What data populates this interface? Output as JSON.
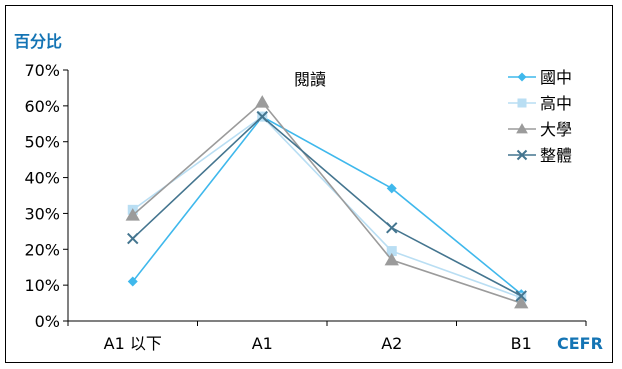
{
  "chart_data": {
    "type": "line",
    "title": "閱讀",
    "ylabel": "百分比",
    "xlabel": "CEFR",
    "categories": [
      "A1 以下",
      "A1",
      "A2",
      "B1"
    ],
    "ylim": [
      0,
      70
    ],
    "yticks": [
      "0%",
      "10%",
      "20%",
      "30%",
      "40%",
      "50%",
      "60%",
      "70%"
    ],
    "legend_position": "top-right",
    "grid": false,
    "series": [
      {
        "name": "國中",
        "values": [
          11,
          57,
          37,
          7.5
        ],
        "color": "#3fb8ec",
        "marker": "diamond"
      },
      {
        "name": "高中",
        "values": [
          31,
          57,
          19.5,
          6.5
        ],
        "color": "#b9def3",
        "marker": "square"
      },
      {
        "name": "大學",
        "values": [
          29.5,
          61,
          17,
          5
        ],
        "color": "#9b9b9b",
        "marker": "triangle"
      },
      {
        "name": "整體",
        "values": [
          23,
          57,
          26,
          7
        ],
        "color": "#44758f",
        "marker": "x"
      }
    ]
  }
}
